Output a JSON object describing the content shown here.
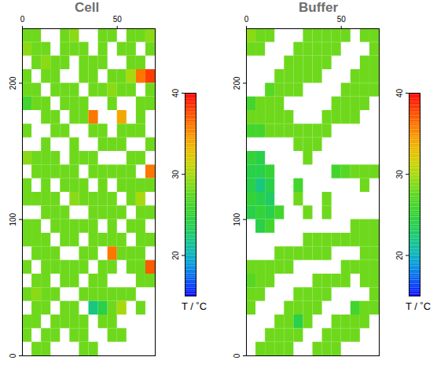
{
  "chart_data": [
    {
      "type": "heatmap",
      "title": "Cell",
      "xlim": [
        0,
        70
      ],
      "ylim": [
        0,
        240
      ],
      "xticks": [
        0,
        50
      ],
      "yticks": [
        0,
        100,
        200
      ],
      "x_bins": [
        0,
        5,
        10,
        15,
        20,
        25,
        30,
        35,
        40,
        45,
        50,
        55,
        60,
        65,
        70
      ],
      "y_bins": [
        240,
        230,
        220,
        210,
        200,
        190,
        180,
        170,
        160,
        150,
        140,
        130,
        120,
        110,
        100,
        90,
        80,
        70,
        60,
        50,
        40,
        30,
        20,
        10,
        0
      ],
      "cells": [
        [
          28,
          28,
          null,
          null,
          28,
          29,
          null,
          null,
          28,
          28,
          null,
          28,
          28,
          29
        ],
        [
          29,
          28,
          28,
          null,
          28,
          28,
          28,
          null,
          28,
          null,
          28,
          28,
          null,
          28
        ],
        [
          null,
          28,
          29,
          28,
          28,
          null,
          28,
          28,
          28,
          null,
          null,
          28,
          28,
          null
        ],
        [
          28,
          null,
          28,
          28,
          null,
          null,
          28,
          28,
          null,
          28,
          28,
          30,
          36,
          38
        ],
        [
          28,
          28,
          null,
          28,
          28,
          28,
          null,
          28,
          28,
          29,
          28,
          28,
          null,
          28
        ],
        [
          26,
          28,
          28,
          null,
          28,
          28,
          28,
          null,
          null,
          28,
          null,
          null,
          28,
          28
        ],
        [
          null,
          null,
          28,
          28,
          null,
          28,
          28,
          36,
          null,
          null,
          34,
          null,
          28,
          null
        ],
        [
          28,
          null,
          null,
          28,
          28,
          null,
          null,
          28,
          28,
          null,
          28,
          28,
          28,
          null
        ],
        [
          null,
          null,
          28,
          null,
          null,
          28,
          null,
          null,
          28,
          28,
          28,
          null,
          null,
          28
        ],
        [
          29,
          28,
          28,
          28,
          null,
          28,
          28,
          28,
          null,
          null,
          null,
          28,
          28,
          null
        ],
        [
          null,
          28,
          28,
          28,
          28,
          28,
          null,
          28,
          28,
          28,
          28,
          28,
          null,
          36
        ],
        [
          28,
          null,
          28,
          null,
          28,
          28,
          28,
          null,
          28,
          null,
          28,
          28,
          28,
          28
        ],
        [
          28,
          28,
          28,
          28,
          null,
          29,
          28,
          28,
          28,
          28,
          null,
          28,
          30,
          null
        ],
        [
          null,
          null,
          28,
          28,
          28,
          null,
          null,
          28,
          28,
          28,
          28,
          null,
          28,
          28
        ],
        [
          28,
          28,
          null,
          28,
          28,
          28,
          28,
          28,
          null,
          28,
          null,
          28,
          28,
          null
        ],
        [
          28,
          28,
          28,
          null,
          28,
          28,
          null,
          28,
          28,
          28,
          28,
          null,
          28,
          28
        ],
        [
          null,
          28,
          28,
          28,
          null,
          null,
          28,
          28,
          null,
          36,
          28,
          28,
          28,
          null
        ],
        [
          28,
          null,
          28,
          28,
          28,
          28,
          28,
          null,
          28,
          28,
          null,
          28,
          28,
          37
        ],
        [
          null,
          28,
          28,
          null,
          28,
          28,
          null,
          28,
          28,
          null,
          null,
          null,
          28,
          28
        ],
        [
          28,
          29,
          28,
          28,
          null,
          null,
          28,
          28,
          28,
          28,
          28,
          28,
          null,
          null
        ],
        [
          null,
          28,
          28,
          null,
          28,
          28,
          null,
          22,
          24,
          28,
          30,
          null,
          28,
          null
        ],
        [
          28,
          28,
          null,
          28,
          28,
          28,
          28,
          null,
          28,
          28,
          null,
          null,
          null,
          null
        ],
        [
          28,
          null,
          28,
          28,
          null,
          28,
          28,
          null,
          null,
          28,
          28,
          null,
          null,
          null
        ],
        [
          null,
          28,
          28,
          null,
          null,
          null,
          28,
          28,
          null,
          null,
          null,
          null,
          null,
          null
        ]
      ],
      "colorbar": {
        "range": [
          15,
          40
        ],
        "ticks": [
          20,
          30,
          40
        ],
        "label": "T / ˚C"
      }
    },
    {
      "type": "heatmap",
      "title": "Buffer",
      "xlim": [
        0,
        70
      ],
      "ylim": [
        0,
        240
      ],
      "xticks": [
        0,
        50
      ],
      "yticks": [
        0,
        100,
        200
      ],
      "x_bins": [
        0,
        5,
        10,
        15,
        20,
        25,
        30,
        35,
        40,
        45,
        50,
        55,
        60,
        65,
        70
      ],
      "y_bins": [
        240,
        230,
        220,
        210,
        200,
        190,
        180,
        170,
        160,
        150,
        140,
        130,
        120,
        110,
        100,
        90,
        80,
        70,
        60,
        50,
        40,
        30,
        20,
        10,
        0
      ],
      "cells": [
        [
          29,
          28,
          28,
          null,
          null,
          null,
          28,
          28,
          28,
          28,
          28,
          null,
          28,
          28
        ],
        [
          28,
          28,
          null,
          null,
          null,
          28,
          28,
          28,
          28,
          28,
          null,
          null,
          null,
          28
        ],
        [
          null,
          null,
          null,
          null,
          28,
          28,
          28,
          28,
          28,
          null,
          null,
          null,
          28,
          28
        ],
        [
          null,
          null,
          null,
          28,
          28,
          28,
          28,
          28,
          null,
          null,
          null,
          28,
          28,
          28
        ],
        [
          null,
          null,
          27,
          28,
          28,
          28,
          null,
          null,
          null,
          null,
          28,
          28,
          28,
          28
        ],
        [
          26,
          28,
          28,
          28,
          null,
          null,
          null,
          null,
          null,
          28,
          28,
          28,
          28,
          null
        ],
        [
          28,
          28,
          28,
          28,
          28,
          null,
          null,
          null,
          28,
          28,
          28,
          28,
          null,
          null
        ],
        [
          26,
          26,
          28,
          28,
          28,
          28,
          28,
          28,
          28,
          null,
          null,
          null,
          null,
          null
        ],
        [
          null,
          null,
          null,
          null,
          null,
          28,
          28,
          28,
          null,
          null,
          null,
          null,
          null,
          null
        ],
        [
          25,
          24,
          null,
          null,
          null,
          null,
          28,
          null,
          null,
          null,
          null,
          null,
          null,
          null
        ],
        [
          24,
          24,
          25,
          null,
          null,
          null,
          null,
          null,
          null,
          26,
          27,
          28,
          28,
          28
        ],
        [
          24,
          22,
          24,
          null,
          null,
          26,
          null,
          null,
          null,
          null,
          null,
          null,
          28,
          null
        ],
        [
          25,
          24,
          23,
          null,
          null,
          28,
          null,
          null,
          28,
          null,
          null,
          null,
          null,
          null
        ],
        [
          24,
          25,
          24,
          26,
          null,
          null,
          28,
          null,
          28,
          null,
          null,
          null,
          null,
          null
        ],
        [
          null,
          24,
          26,
          null,
          null,
          null,
          null,
          null,
          null,
          null,
          null,
          28,
          28,
          28
        ],
        [
          null,
          null,
          null,
          null,
          null,
          null,
          28,
          28,
          28,
          28,
          28,
          28,
          28,
          28
        ],
        [
          null,
          null,
          null,
          28,
          28,
          28,
          28,
          28,
          28,
          null,
          null,
          null,
          28,
          28
        ],
        [
          28,
          28,
          28,
          28,
          28,
          null,
          null,
          null,
          null,
          null,
          28,
          28,
          28,
          28
        ],
        [
          27,
          28,
          28,
          null,
          null,
          null,
          null,
          28,
          28,
          28,
          28,
          null,
          28,
          28
        ],
        [
          28,
          28,
          null,
          null,
          null,
          28,
          28,
          28,
          28,
          null,
          null,
          null,
          null,
          28
        ],
        [
          28,
          null,
          null,
          null,
          28,
          28,
          28,
          28,
          null,
          null,
          null,
          26,
          28,
          28
        ],
        [
          null,
          null,
          null,
          28,
          28,
          24,
          28,
          null,
          null,
          28,
          28,
          28,
          28,
          null
        ],
        [
          null,
          null,
          28,
          28,
          28,
          28,
          null,
          null,
          28,
          28,
          28,
          28,
          null,
          null
        ],
        [
          null,
          28,
          28,
          28,
          28,
          null,
          null,
          28,
          28,
          28,
          null,
          null,
          null,
          null
        ]
      ],
      "colorbar": {
        "range": [
          15,
          40
        ],
        "ticks": [
          20,
          30,
          40
        ],
        "label": "T / ˚C"
      }
    }
  ]
}
